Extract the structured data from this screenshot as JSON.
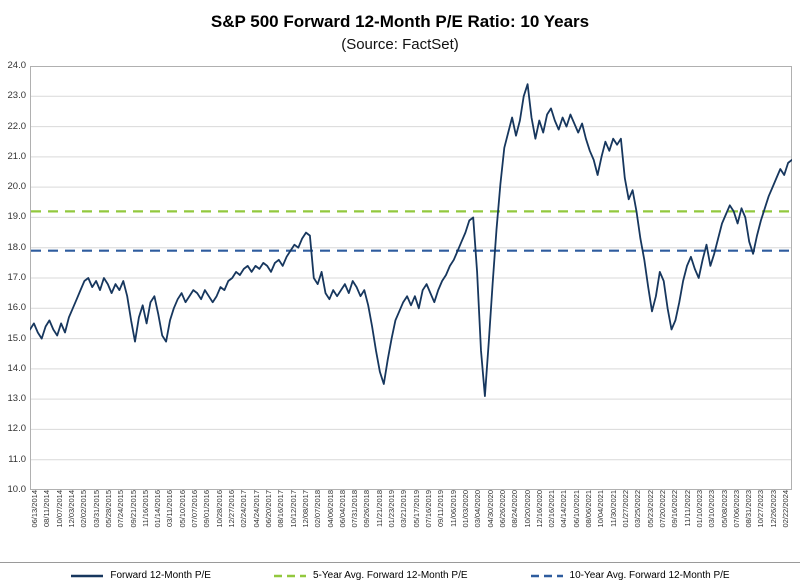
{
  "chart_data": {
    "type": "line",
    "title": "S&P 500 Forward 12-Month P/E Ratio: 10 Years",
    "subtitle": "(Source: FactSet)",
    "xlabel": "",
    "ylabel": "",
    "ylim": [
      10.0,
      24.0
    ],
    "grid": true,
    "legend_position": "bottom",
    "yticks": [
      "24.0",
      "23.0",
      "22.0",
      "21.0",
      "20.0",
      "19.0",
      "18.0",
      "17.0",
      "16.0",
      "15.0",
      "14.0",
      "13.0",
      "12.0",
      "11.0",
      "10.0"
    ],
    "x_labels": [
      "06/13/2014",
      "08/11/2014",
      "10/07/2014",
      "12/03/2014",
      "02/02/2015",
      "03/31/2015",
      "05/28/2015",
      "07/24/2015",
      "09/21/2015",
      "11/16/2015",
      "01/14/2016",
      "03/11/2016",
      "05/10/2016",
      "07/07/2016",
      "09/01/2016",
      "10/28/2016",
      "12/27/2016",
      "02/24/2017",
      "04/24/2017",
      "06/20/2017",
      "08/16/2017",
      "10/12/2017",
      "12/08/2017",
      "02/07/2018",
      "04/06/2018",
      "06/04/2018",
      "07/31/2018",
      "09/26/2018",
      "11/21/2018",
      "01/23/2019",
      "03/21/2019",
      "05/17/2019",
      "07/16/2019",
      "09/11/2019",
      "11/06/2019",
      "01/03/2020",
      "03/04/2020",
      "04/30/2020",
      "06/26/2020",
      "08/24/2020",
      "10/20/2020",
      "12/16/2020",
      "02/16/2021",
      "04/14/2021",
      "06/10/2021",
      "08/06/2021",
      "10/04/2021",
      "11/30/2021",
      "01/27/2022",
      "03/25/2022",
      "05/23/2022",
      "07/20/2022",
      "09/16/2022",
      "11/11/2022",
      "01/10/2023",
      "03/10/2023",
      "05/08/2023",
      "07/06/2023",
      "08/31/2023",
      "10/27/2023",
      "12/26/2023",
      "02/22/2024"
    ],
    "series": [
      {
        "name": "Forward 12-Month P/E",
        "type": "line",
        "color": "#17375e",
        "values": [
          15.3,
          15.5,
          15.2,
          15.0,
          15.4,
          15.6,
          15.3,
          15.1,
          15.5,
          15.2,
          15.7,
          16.0,
          16.3,
          16.6,
          16.9,
          17.0,
          16.7,
          16.9,
          16.6,
          17.0,
          16.8,
          16.5,
          16.8,
          16.6,
          16.9,
          16.4,
          15.6,
          14.9,
          15.7,
          16.1,
          15.5,
          16.2,
          16.4,
          15.8,
          15.1,
          14.9,
          15.6,
          16.0,
          16.3,
          16.5,
          16.2,
          16.4,
          16.6,
          16.5,
          16.3,
          16.6,
          16.4,
          16.2,
          16.4,
          16.7,
          16.6,
          16.9,
          17.0,
          17.2,
          17.1,
          17.3,
          17.4,
          17.2,
          17.4,
          17.3,
          17.5,
          17.4,
          17.2,
          17.5,
          17.6,
          17.4,
          17.7,
          17.9,
          18.1,
          18.0,
          18.3,
          18.5,
          18.4,
          17.0,
          16.8,
          17.2,
          16.5,
          16.3,
          16.6,
          16.4,
          16.6,
          16.8,
          16.5,
          16.9,
          16.7,
          16.4,
          16.6,
          16.1,
          15.4,
          14.6,
          13.9,
          13.5,
          14.3,
          15.0,
          15.6,
          15.9,
          16.2,
          16.4,
          16.1,
          16.4,
          16.0,
          16.6,
          16.8,
          16.5,
          16.2,
          16.6,
          16.9,
          17.1,
          17.4,
          17.6,
          17.9,
          18.2,
          18.5,
          18.9,
          19.0,
          17.2,
          14.6,
          13.1,
          14.9,
          16.8,
          18.6,
          20.1,
          21.3,
          21.8,
          22.3,
          21.7,
          22.2,
          23.0,
          23.4,
          22.3,
          21.6,
          22.2,
          21.8,
          22.4,
          22.6,
          22.2,
          21.9,
          22.3,
          22.0,
          22.4,
          22.1,
          21.8,
          22.1,
          21.6,
          21.2,
          20.9,
          20.4,
          21.0,
          21.5,
          21.2,
          21.6,
          21.4,
          21.6,
          20.3,
          19.6,
          19.9,
          19.2,
          18.3,
          17.6,
          16.7,
          15.9,
          16.4,
          17.2,
          16.9,
          16.0,
          15.3,
          15.6,
          16.2,
          16.9,
          17.4,
          17.7,
          17.3,
          17.0,
          17.6,
          18.1,
          17.4,
          17.8,
          18.3,
          18.8,
          19.1,
          19.4,
          19.2,
          18.8,
          19.3,
          19.0,
          18.2,
          17.8,
          18.4,
          18.9,
          19.3,
          19.7,
          20.0,
          20.3,
          20.6,
          20.4,
          20.8,
          20.9
        ]
      },
      {
        "name": "5-Year Avg. Forward 12-Month P/E",
        "type": "hline",
        "color": "#92c83e",
        "value": 19.2
      },
      {
        "name": "10-Year Avg. Forward 12-Month P/E",
        "type": "hline",
        "color": "#2e5c9e",
        "value": 17.9
      }
    ],
    "legend": [
      {
        "label": "Forward 12-Month P/E",
        "color": "#17375e",
        "style": "solid"
      },
      {
        "label": "5-Year Avg. Forward 12-Month P/E",
        "color": "#92c83e",
        "style": "dashed"
      },
      {
        "label": "10-Year Avg. Forward 12-Month P/E",
        "color": "#2e5c9e",
        "style": "dashed"
      }
    ]
  }
}
